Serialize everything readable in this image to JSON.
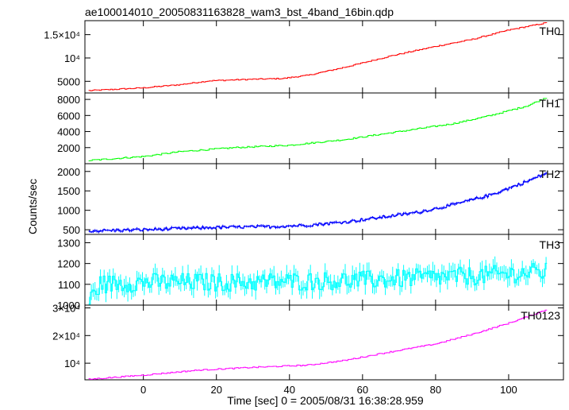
{
  "chart_data": {
    "type": "line",
    "title": "ae100014010_20050831163828_wam3_bst_4band_16bin.qdp",
    "xlabel": "Time [sec] 0 = 2005/08/31 16:38:28.959",
    "ylabel": "Counts/sec",
    "xlim": [
      -16,
      115
    ],
    "xticks": [
      0,
      20,
      40,
      60,
      80,
      100
    ],
    "grid": false,
    "panels": [
      {
        "name": "TH0",
        "color": "#ff0000",
        "ylim": [
          2500,
          18000
        ],
        "yticks": [
          5000,
          10000,
          15000
        ],
        "yticklabels": [
          "5000",
          "10⁴",
          "1.5×10⁴"
        ],
        "points": [
          [
            -15,
            3000
          ],
          [
            0,
            3600
          ],
          [
            10,
            4300
          ],
          [
            18,
            5100
          ],
          [
            28,
            5400
          ],
          [
            38,
            5600
          ],
          [
            45,
            6300
          ],
          [
            55,
            8000
          ],
          [
            68,
            10500
          ],
          [
            80,
            12500
          ],
          [
            90,
            14000
          ],
          [
            100,
            16000
          ],
          [
            110,
            17500
          ]
        ],
        "noise": 120,
        "errbar": 0
      },
      {
        "name": "TH1",
        "color": "#00ff00",
        "ylim": [
          0,
          8800
        ],
        "yticks": [
          2000,
          4000,
          6000,
          8000
        ],
        "yticklabels": [
          "2000",
          "4000",
          "6000",
          "8000"
        ],
        "points": [
          [
            -15,
            400
          ],
          [
            0,
            900
          ],
          [
            10,
            1500
          ],
          [
            25,
            2000
          ],
          [
            40,
            2300
          ],
          [
            55,
            3000
          ],
          [
            70,
            4000
          ],
          [
            85,
            5000
          ],
          [
            95,
            6000
          ],
          [
            105,
            7200
          ],
          [
            110,
            8200
          ]
        ],
        "noise": 90,
        "errbar": 0
      },
      {
        "name": "TH2",
        "color": "#0000ff",
        "ylim": [
          380,
          2200
        ],
        "yticks": [
          500,
          1000,
          1500,
          2000
        ],
        "yticklabels": [
          "500",
          "1000",
          "1500",
          "2000"
        ],
        "points": [
          [
            -15,
            470
          ],
          [
            0,
            500
          ],
          [
            20,
            560
          ],
          [
            35,
            580
          ],
          [
            45,
            620
          ],
          [
            55,
            700
          ],
          [
            65,
            820
          ],
          [
            75,
            950
          ],
          [
            85,
            1150
          ],
          [
            95,
            1400
          ],
          [
            105,
            1750
          ],
          [
            110,
            1950
          ]
        ],
        "noise": 35,
        "errbar": 30
      },
      {
        "name": "TH3",
        "color": "#00ffff",
        "ylim": [
          1000,
          1340
        ],
        "yticks": [
          1000,
          1100,
          1200,
          1300
        ],
        "yticklabels": [
          "1000",
          "1100",
          "1200",
          "1300"
        ],
        "points": [
          [
            -15,
            1020
          ],
          [
            -12,
            1100
          ],
          [
            0,
            1110
          ],
          [
            30,
            1110
          ],
          [
            60,
            1120
          ],
          [
            90,
            1140
          ],
          [
            110,
            1160
          ]
        ],
        "noise": 45,
        "errbar": 35
      },
      {
        "name": "TH0123",
        "color": "#ff00ff",
        "ylim": [
          4000,
          31000
        ],
        "yticks": [
          10000,
          20000,
          30000
        ],
        "yticklabels": [
          "10⁴",
          "2×10⁴",
          "3×10⁴"
        ],
        "points": [
          [
            -15,
            4200
          ],
          [
            0,
            5700
          ],
          [
            15,
            7500
          ],
          [
            30,
            8500
          ],
          [
            45,
            9300
          ],
          [
            55,
            11000
          ],
          [
            65,
            13500
          ],
          [
            80,
            17000
          ],
          [
            90,
            20500
          ],
          [
            100,
            24500
          ],
          [
            110,
            29200
          ]
        ],
        "noise": 220,
        "errbar": 0
      }
    ]
  }
}
